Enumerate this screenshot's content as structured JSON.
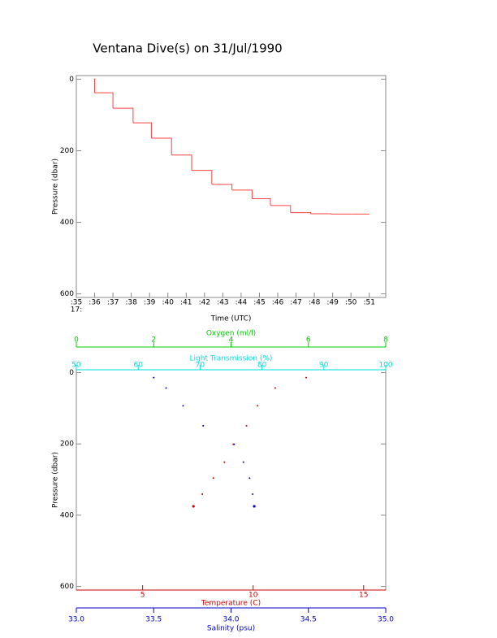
{
  "chart_data": [
    {
      "type": "line",
      "step": "post",
      "color": "#ff4040",
      "title": "Ventana Dive(s) on 31/Jul/1990",
      "x_label": "Time (UTC)",
      "y_label": "Pressure (dbar)",
      "x_hour_label": "17:",
      "xlim": [
        35,
        51.9
      ],
      "xticks": [
        {
          "value": 35,
          "label": ":35"
        },
        {
          "value": 36,
          "label": ":36"
        },
        {
          "value": 37,
          "label": ":37"
        },
        {
          "value": 38,
          "label": ":38"
        },
        {
          "value": 39,
          "label": ":39"
        },
        {
          "value": 40,
          "label": ":40"
        },
        {
          "value": 41,
          "label": ":41"
        },
        {
          "value": 42,
          "label": ":42"
        },
        {
          "value": 43,
          "label": ":43"
        },
        {
          "value": 44,
          "label": ":44"
        },
        {
          "value": 45,
          "label": ":45"
        },
        {
          "value": 46,
          "label": ":46"
        },
        {
          "value": 47,
          "label": ":47"
        },
        {
          "value": 48,
          "label": ":48"
        },
        {
          "value": 49,
          "label": ":49"
        },
        {
          "value": 50,
          "label": ":50"
        },
        {
          "value": 51,
          "label": ":51"
        }
      ],
      "ylim": [
        -10,
        610
      ],
      "y_inverted": true,
      "yticks": [
        0,
        200,
        400,
        600
      ],
      "x": [
        36,
        36,
        37,
        38.1,
        39.1,
        40.2,
        41.3,
        42.4,
        43.5,
        44.6,
        45.6,
        46.7,
        47.8,
        48.9,
        50,
        51
      ],
      "values": [
        0,
        38,
        81,
        122,
        165,
        212,
        255,
        294,
        310,
        334,
        353,
        373,
        376,
        377,
        377,
        377
      ]
    },
    {
      "type": "scatter",
      "y_label": "Pressure (dbar)",
      "ylim": [
        -8,
        610
      ],
      "y_inverted": true,
      "yticks": [
        0,
        200,
        400,
        600
      ],
      "x_axes": [
        {
          "label": "Oxygen (ml/l)",
          "color": "#00cc00",
          "lim": [
            0,
            8
          ],
          "ticks": [
            0,
            2,
            4,
            6,
            8
          ]
        },
        {
          "label": "Light Transmission (%)",
          "color": "#00dddd",
          "lim": [
            50,
            100
          ],
          "ticks": [
            50,
            60,
            70,
            80,
            90,
            100
          ]
        },
        {
          "label": "Temperature (C)",
          "color": "#cc0000",
          "lim": [
            2,
            16
          ],
          "ticks": [
            5,
            10,
            15
          ]
        },
        {
          "label": "Salinity (psu)",
          "color": "#0000cc",
          "lim": [
            33,
            35
          ],
          "ticks": [
            {
              "value": 33,
              "label": "33.0"
            },
            33.5,
            {
              "value": 34,
              "label": "34.0"
            },
            34.5,
            {
              "value": 35,
              "label": "35.0"
            }
          ]
        }
      ],
      "series": [
        {
          "axis": 2,
          "color": "#cc0000",
          "x": [
            12.4,
            11.0,
            10.2,
            9.7,
            9.1,
            8.7,
            8.2,
            7.7,
            7.3
          ],
          "values": [
            14,
            43,
            93,
            149,
            201,
            251,
            296,
            341,
            375
          ]
        },
        {
          "axis": 3,
          "color": "#0000cc",
          "x": [
            33.5,
            33.58,
            33.69,
            33.82,
            34.02,
            34.08,
            34.12,
            34.14,
            34.15
          ],
          "values": [
            14,
            43,
            93,
            149,
            201,
            251,
            296,
            341,
            375
          ]
        }
      ]
    }
  ]
}
